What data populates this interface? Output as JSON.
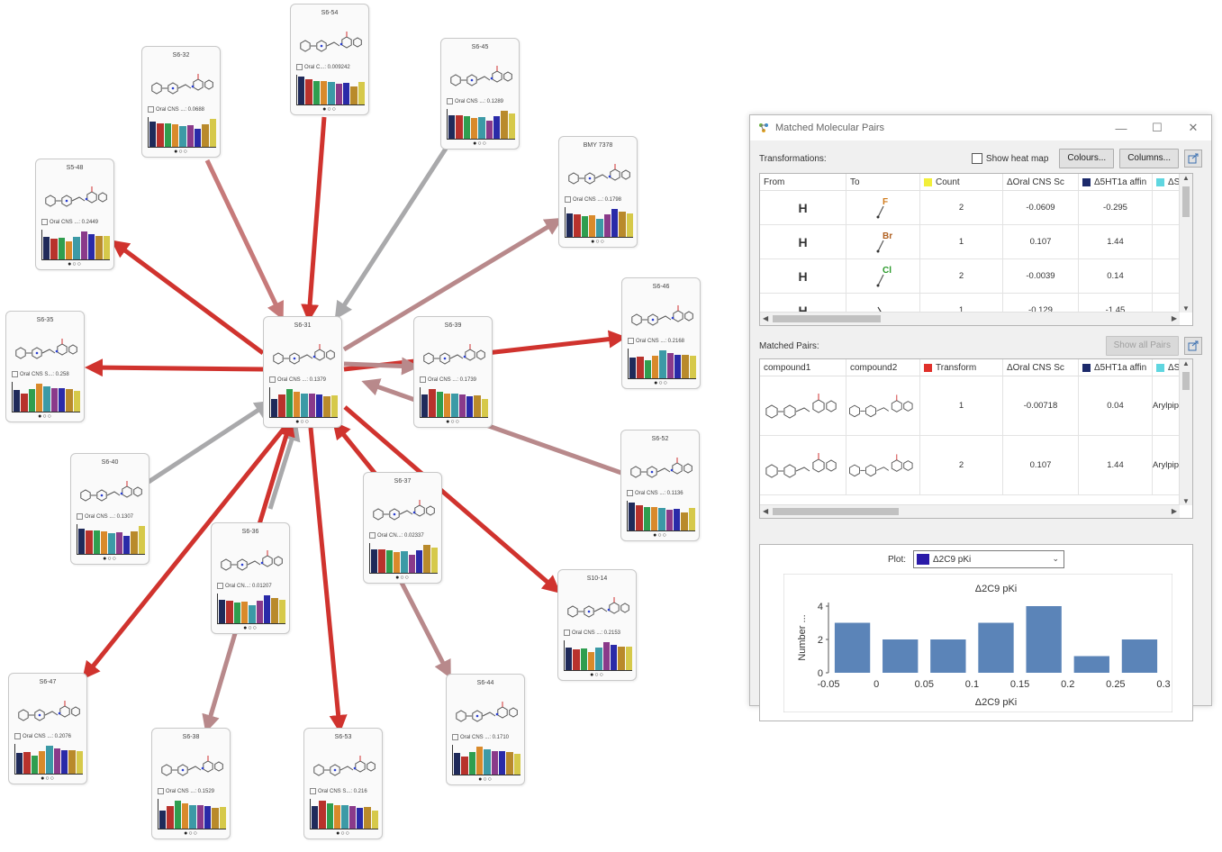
{
  "network": {
    "nodes": [
      {
        "id": "S6-54",
        "prop": "Oral C...: 0.009242"
      },
      {
        "id": "S6-32",
        "prop": "Oral CNS ...: 0.0688"
      },
      {
        "id": "S6-45",
        "prop": "Oral CNS ...: 0.1289"
      },
      {
        "id": "BMY 7378",
        "prop": "Oral CNS ...: 0.1798"
      },
      {
        "id": "S5-48",
        "prop": "Oral CNS ...: 0.2449"
      },
      {
        "id": "S6-46",
        "prop": "Oral CNS ...: 0.2168"
      },
      {
        "id": "S6-35",
        "prop": "Oral CNS S...: 0.258"
      },
      {
        "id": "S6-31",
        "prop": "Oral CNS ...: 0.1379"
      },
      {
        "id": "S6-39",
        "prop": "Oral CNS ...: 0.1739"
      },
      {
        "id": "S6-52",
        "prop": "Oral CNS ...: 0.1136"
      },
      {
        "id": "S6-40",
        "prop": "Oral CNS ...: 0.1307"
      },
      {
        "id": "S6-37",
        "prop": "Oral CN...: 0.02337"
      },
      {
        "id": "S6-36",
        "prop": "Oral CN...: 0.01207"
      },
      {
        "id": "S10-14",
        "prop": "Oral CNS ...: 0.2153"
      },
      {
        "id": "S6-47",
        "prop": "Oral CNS ...: 0.2076"
      },
      {
        "id": "S6-44",
        "prop": "Oral CNS ...: 0.1710"
      },
      {
        "id": "S6-38",
        "prop": "Oral CNS ...: 0.1529"
      },
      {
        "id": "S6-53",
        "prop": "Oral CNS S...: 0.216"
      }
    ],
    "bar_colors": [
      "#1f2a5a",
      "#b8322c",
      "#2f9e4f",
      "#d98a2b",
      "#3c9aa6",
      "#8a3a8a",
      "#2a2aa8",
      "#b98a2b",
      "#d6c94a"
    ],
    "dots": "●○○"
  },
  "window": {
    "title": "Matched Molecular Pairs",
    "controls": {
      "minimize": "—",
      "maximize": "☐",
      "close": "✕"
    },
    "transformations": {
      "label": "Transformations:",
      "show_heat_map": "Show heat map",
      "colours_button": "Colours...",
      "columns_button": "Columns...",
      "headers": {
        "from": "From",
        "to": "To",
        "count": "Count",
        "d_oral": "ΔOral CNS Sc",
        "d_5ht": "Δ5HT1a affin",
        "d_ser": "ΔSer"
      },
      "rows": [
        {
          "from": "H",
          "to_label": "F",
          "count": "2",
          "d_oral": "-0.0609",
          "d_5ht": "-0.295"
        },
        {
          "from": "H",
          "to_label": "Br",
          "count": "1",
          "d_oral": "0.107",
          "d_5ht": "1.44"
        },
        {
          "from": "H",
          "to_label": "Cl",
          "count": "2",
          "d_oral": "-0.0039",
          "d_5ht": "0.14"
        },
        {
          "from": "H",
          "to_label": "",
          "count": "1",
          "d_oral": "-0.129",
          "d_5ht": "-1.45"
        }
      ]
    },
    "matched_pairs": {
      "label": "Matched Pairs:",
      "show_all_button": "Show all Pairs",
      "headers": {
        "c1": "compound1",
        "c2": "compound2",
        "transform": "Transform",
        "d_oral": "ΔOral CNS Sc",
        "d_5ht": "Δ5HT1a affin",
        "d_ser": "ΔSer"
      },
      "rows": [
        {
          "transform": "1",
          "d_oral": "-0.00718",
          "d_5ht": "0.04",
          "d_ser": "Arylpipe"
        },
        {
          "transform": "2",
          "d_oral": "0.107",
          "d_5ht": "1.44",
          "d_ser": "Arylpipe"
        }
      ]
    },
    "plot": {
      "label": "Plot:",
      "selected": "Δ2C9 pKi"
    },
    "colors": {
      "count": "#f2ef3a",
      "d_5ht": "#1c2a6b",
      "d_ser": "#5fd6e0",
      "transform": "#e0302a",
      "plot_series": "#2a1aa8"
    }
  },
  "chart_data": {
    "type": "bar",
    "title": "Δ2C9 pKi",
    "xlabel": "Δ2C9 pKi",
    "ylabel": "Number ...",
    "x": [
      -0.025,
      0.025,
      0.075,
      0.125,
      0.175,
      0.225,
      0.275
    ],
    "values": [
      3,
      2,
      2,
      3,
      4,
      1,
      2
    ],
    "xlim": [
      -0.05,
      0.3
    ],
    "ylim": [
      0,
      4
    ],
    "xticks": [
      "-0.05",
      "0",
      "0.05",
      "0.1",
      "0.15",
      "0.2",
      "0.25",
      "0.3"
    ],
    "yticks": [
      "0",
      "2",
      "4"
    ],
    "bar_color": "#5b84b8"
  }
}
